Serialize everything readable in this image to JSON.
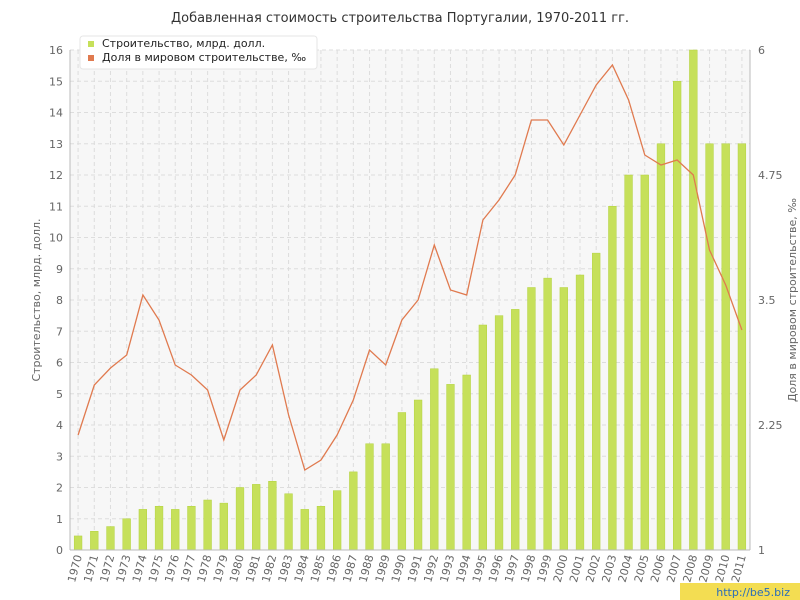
{
  "watermark": "http://be5.biz",
  "colors": {
    "bar": "#c6e05a",
    "bar_edge": "#b3d23f",
    "line": "#e07a4f",
    "grid": "#dddddd",
    "plot_bg": "#f7f7f7",
    "watermark_bg": "#f3dd52"
  },
  "chart_data": {
    "type": "bar+line",
    "title": "Добавленная стоимость строительства Португалии, 1970-2011 гг.",
    "categories": [
      "1970",
      "1971",
      "1972",
      "1973",
      "1974",
      "1975",
      "1976",
      "1977",
      "1978",
      "1979",
      "1980",
      "1981",
      "1982",
      "1983",
      "1984",
      "1985",
      "1986",
      "1987",
      "1988",
      "1989",
      "1990",
      "1991",
      "1992",
      "1993",
      "1994",
      "1995",
      "1996",
      "1997",
      "1998",
      "1999",
      "2000",
      "2001",
      "2002",
      "2003",
      "2004",
      "2005",
      "2006",
      "2007",
      "2008",
      "2009",
      "2010",
      "2011"
    ],
    "series": [
      {
        "name": "Строительство, млрд. долл.",
        "type": "bar",
        "axis": "left",
        "values": [
          0.45,
          0.6,
          0.75,
          1.0,
          1.3,
          1.4,
          1.3,
          1.4,
          1.6,
          1.5,
          2.0,
          2.1,
          2.2,
          1.8,
          1.3,
          1.4,
          1.9,
          2.5,
          3.4,
          3.4,
          4.4,
          4.8,
          5.8,
          5.3,
          5.6,
          7.2,
          7.5,
          7.7,
          8.4,
          8.7,
          8.4,
          8.8,
          9.5,
          11.0,
          12.0,
          12.0,
          13.0,
          15.0,
          16.0,
          13.0,
          13.0,
          13.0
        ]
      },
      {
        "name": "Доля в мировом строительстве, ‰",
        "type": "line",
        "axis": "right",
        "values": [
          2.15,
          2.65,
          2.82,
          2.95,
          3.55,
          3.3,
          2.85,
          2.75,
          2.6,
          2.1,
          2.6,
          2.75,
          3.05,
          2.35,
          1.8,
          1.9,
          2.15,
          2.5,
          3.0,
          2.85,
          3.3,
          3.5,
          4.05,
          3.6,
          3.55,
          4.3,
          4.5,
          4.75,
          5.3,
          5.3,
          5.05,
          5.35,
          5.65,
          5.85,
          5.5,
          4.95,
          4.85,
          4.9,
          4.75,
          4.0,
          3.65,
          3.2
        ]
      }
    ],
    "y_left": {
      "label": "Строительство, млрд. долл.",
      "min": 0,
      "max": 16,
      "ticks": [
        "0",
        "1",
        "2",
        "3",
        "4",
        "5",
        "6",
        "7",
        "8",
        "9",
        "10",
        "11",
        "12",
        "13",
        "14",
        "15",
        "16"
      ]
    },
    "y_right": {
      "label": "Доля в мировом строительстве, ‰",
      "min": 1,
      "max": 6,
      "ticks": [
        "1",
        "2.25",
        "3.5",
        "4.75",
        "6"
      ]
    },
    "grid": true,
    "legend_position": "top-left"
  }
}
